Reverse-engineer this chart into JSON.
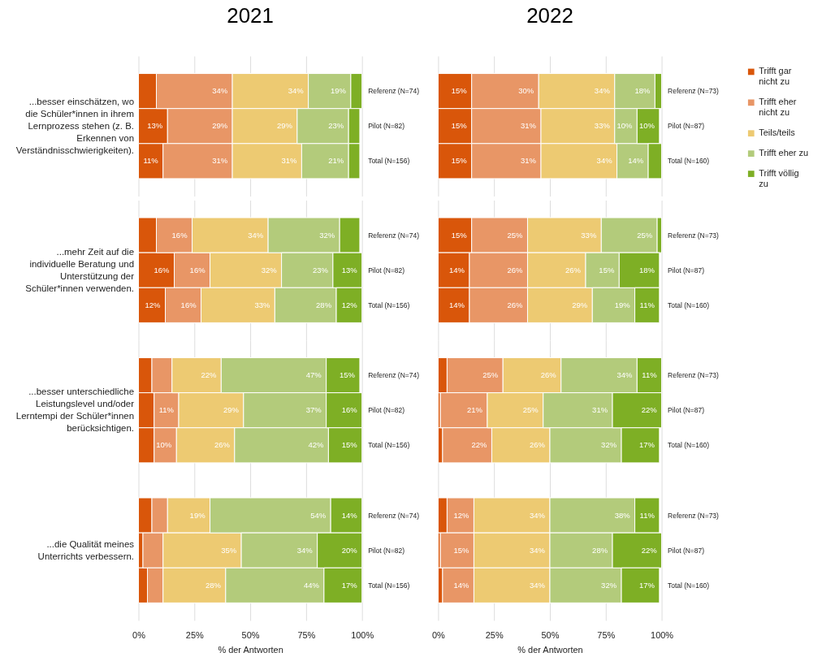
{
  "chart_data": [
    {
      "type": "bar",
      "orientation": "horizontal",
      "stacked": true,
      "title": "2021",
      "ylabel": "...besser einschätzen, wo die Schüler*innen in ihrem Lernprozess stehen (z. B. Erkennen von Verständnisschwierigkeiten).",
      "categories": [
        "Referenz (N=74)",
        "Pilot (N=82)",
        "Total (N=156)"
      ],
      "series": [
        {
          "color": "#d9560a",
          "values": [
            8,
            13,
            11
          ],
          "value_labels": [
            null,
            "13%",
            "11%"
          ]
        },
        {
          "color": "#e89666",
          "values": [
            34,
            29,
            31
          ],
          "value_labels": [
            "34%",
            "29%",
            "31%"
          ]
        },
        {
          "color": "#edca72",
          "values": [
            34,
            29,
            31
          ],
          "value_labels": [
            "34%",
            "29%",
            "31%"
          ]
        },
        {
          "color": "#b3cb7b",
          "values": [
            19,
            23,
            21
          ],
          "value_labels": [
            "19%",
            "23%",
            "21%"
          ]
        },
        {
          "color": "#7eaf25",
          "values": [
            5,
            5,
            5
          ],
          "value_labels": [
            null,
            null,
            null
          ]
        }
      ],
      "xlim": [
        0,
        100
      ],
      "xticks": [
        {
          "value": 0,
          "label": null
        },
        {
          "value": 25,
          "label": null
        },
        {
          "value": 50,
          "label": null
        },
        {
          "value": 75,
          "label": null
        },
        {
          "value": 100,
          "label": null
        }
      ],
      "grid": "x",
      "tick_labels": "y"
    },
    {
      "type": "bar",
      "orientation": "horizontal",
      "stacked": true,
      "title": "2022",
      "categories": [
        "Referenz (N=73)",
        "Pilot (N=87)",
        "Total (N=160)"
      ],
      "series": [
        {
          "name": "Trifft gar nicht zu",
          "color": "#d9560a",
          "values": [
            15,
            15,
            15
          ],
          "value_labels": [
            "15%",
            "15%",
            "15%"
          ]
        },
        {
          "name": "Trifft eher nicht zu",
          "color": "#e89666",
          "values": [
            30,
            31,
            31
          ],
          "value_labels": [
            "30%",
            "31%",
            "31%"
          ]
        },
        {
          "name": "Teils/teils",
          "color": "#edca72",
          "values": [
            34,
            33,
            34
          ],
          "value_labels": [
            "34%",
            "33%",
            "34%"
          ]
        },
        {
          "name": "Trifft eher zu",
          "color": "#b3cb7b",
          "values": [
            18,
            10,
            14
          ],
          "value_labels": [
            "18%",
            "10%",
            "14%"
          ]
        },
        {
          "name": "Trifft völlig zu",
          "color": "#7eaf25",
          "values": [
            3,
            10,
            6
          ],
          "value_labels": [
            null,
            "10%",
            null
          ]
        }
      ],
      "xlim": [
        0,
        100
      ],
      "xticks": [
        {
          "value": 0,
          "label": null
        },
        {
          "value": 25,
          "label": null
        },
        {
          "value": 50,
          "label": null
        },
        {
          "value": 75,
          "label": null
        },
        {
          "value": 100,
          "label": null
        }
      ],
      "grid": "x",
      "tick_labels": "y",
      "legend": "right"
    },
    {
      "type": "bar",
      "orientation": "horizontal",
      "stacked": true,
      "ylabel": "...mehr Zeit auf die individuelle Beratung und Unterstützung der Schüler*innen verwenden.",
      "categories": [
        "Referenz (N=74)",
        "Pilot (N=82)",
        "Total (N=156)"
      ],
      "series": [
        {
          "color": "#d9560a",
          "values": [
            8,
            16,
            12
          ],
          "value_labels": [
            null,
            "16%",
            "12%"
          ]
        },
        {
          "color": "#e89666",
          "values": [
            16,
            16,
            16
          ],
          "value_labels": [
            "16%",
            "16%",
            "16%"
          ]
        },
        {
          "color": "#edca72",
          "values": [
            34,
            32,
            33
          ],
          "value_labels": [
            "34%",
            "32%",
            "33%"
          ]
        },
        {
          "color": "#b3cb7b",
          "values": [
            32,
            23,
            27.5
          ],
          "value_labels": [
            "32%",
            "23%",
            "28%"
          ]
        },
        {
          "color": "#7eaf25",
          "values": [
            9,
            13,
            11.5
          ],
          "value_labels": [
            null,
            "13%",
            "12%"
          ]
        }
      ],
      "xlim": [
        0,
        100
      ],
      "xticks": [
        {
          "value": 0,
          "label": null
        },
        {
          "value": 25,
          "label": null
        },
        {
          "value": 50,
          "label": null
        },
        {
          "value": 75,
          "label": null
        },
        {
          "value": 100,
          "label": null
        }
      ],
      "grid": "x",
      "tick_labels": "y"
    },
    {
      "type": "bar",
      "orientation": "horizontal",
      "stacked": true,
      "categories": [
        "Referenz (N=73)",
        "Pilot (N=87)",
        "Total (N=160)"
      ],
      "series": [
        {
          "color": "#d9560a",
          "values": [
            15,
            14,
            14
          ],
          "value_labels": [
            "15%",
            "14%",
            "14%"
          ]
        },
        {
          "color": "#e89666",
          "values": [
            25,
            26,
            26
          ],
          "value_labels": [
            "25%",
            "26%",
            "26%"
          ]
        },
        {
          "color": "#edca72",
          "values": [
            33,
            26,
            29
          ],
          "value_labels": [
            "33%",
            "26%",
            "29%"
          ]
        },
        {
          "color": "#b3cb7b",
          "values": [
            25,
            15,
            19
          ],
          "value_labels": [
            "25%",
            "15%",
            "19%"
          ]
        },
        {
          "color": "#7eaf25",
          "values": [
            2,
            18,
            11
          ],
          "value_labels": [
            null,
            "18%",
            "11%"
          ]
        }
      ],
      "xlim": [
        0,
        100
      ],
      "xticks": [
        {
          "value": 0,
          "label": null
        },
        {
          "value": 25,
          "label": null
        },
        {
          "value": 50,
          "label": null
        },
        {
          "value": 75,
          "label": null
        },
        {
          "value": 100,
          "label": null
        }
      ],
      "grid": "x",
      "tick_labels": "y"
    },
    {
      "type": "bar",
      "orientation": "horizontal",
      "stacked": true,
      "ylabel": "...besser unterschiedliche Leistungslevel und/oder Lerntempi der Schüler*innen berücksichtigen.",
      "categories": [
        "Referenz (N=74)",
        "Pilot (N=82)",
        "Total (N=156)"
      ],
      "series": [
        {
          "color": "#d9560a",
          "values": [
            6,
            7,
            7
          ],
          "value_labels": [
            null,
            null,
            null
          ]
        },
        {
          "color": "#e89666",
          "values": [
            9,
            11,
            10
          ],
          "value_labels": [
            null,
            "11%",
            "10%"
          ]
        },
        {
          "color": "#edca72",
          "values": [
            22,
            29,
            26
          ],
          "value_labels": [
            "22%",
            "29%",
            "26%"
          ]
        },
        {
          "color": "#b3cb7b",
          "values": [
            47,
            37,
            42
          ],
          "value_labels": [
            "47%",
            "37%",
            "42%"
          ]
        },
        {
          "color": "#7eaf25",
          "values": [
            15,
            16,
            15
          ],
          "value_labels": [
            "15%",
            "16%",
            "15%"
          ]
        }
      ],
      "xlim": [
        0,
        100
      ],
      "xticks": [
        {
          "value": 0,
          "label": null
        },
        {
          "value": 25,
          "label": null
        },
        {
          "value": 50,
          "label": null
        },
        {
          "value": 75,
          "label": null
        },
        {
          "value": 100,
          "label": null
        }
      ],
      "grid": "x",
      "tick_labels": "y"
    },
    {
      "type": "bar",
      "orientation": "horizontal",
      "stacked": true,
      "categories": [
        "Referenz (N=73)",
        "Pilot (N=87)",
        "Total (N=160)"
      ],
      "series": [
        {
          "color": "#d9560a",
          "values": [
            4,
            1,
            2
          ],
          "value_labels": [
            null,
            null,
            null
          ]
        },
        {
          "color": "#e89666",
          "values": [
            25,
            21,
            22
          ],
          "value_labels": [
            "25%",
            "21%",
            "22%"
          ]
        },
        {
          "color": "#edca72",
          "values": [
            26,
            25,
            26
          ],
          "value_labels": [
            "26%",
            "25%",
            "26%"
          ]
        },
        {
          "color": "#b3cb7b",
          "values": [
            34,
            31,
            32
          ],
          "value_labels": [
            "34%",
            "31%",
            "32%"
          ]
        },
        {
          "color": "#7eaf25",
          "values": [
            11,
            22,
            17
          ],
          "value_labels": [
            "11%",
            "22%",
            "17%"
          ]
        }
      ],
      "xlim": [
        0,
        100
      ],
      "xticks": [
        {
          "value": 0,
          "label": null
        },
        {
          "value": 25,
          "label": null
        },
        {
          "value": 50,
          "label": null
        },
        {
          "value": 75,
          "label": null
        },
        {
          "value": 100,
          "label": null
        }
      ],
      "grid": "x",
      "tick_labels": "y"
    },
    {
      "type": "bar",
      "orientation": "horizontal",
      "stacked": true,
      "ylabel": "...die Qualität meines Unterrichts verbessern.",
      "xlabel": "% der Antworten",
      "categories": [
        "Referenz (N=74)",
        "Pilot (N=82)",
        "Total (N=156)"
      ],
      "series": [
        {
          "color": "#d9560a",
          "values": [
            6,
            2,
            4
          ],
          "value_labels": [
            null,
            null,
            null
          ]
        },
        {
          "color": "#e89666",
          "values": [
            7,
            9,
            7
          ],
          "value_labels": [
            null,
            null,
            null
          ]
        },
        {
          "color": "#edca72",
          "values": [
            19,
            35,
            28
          ],
          "value_labels": [
            "19%",
            "35%",
            "28%"
          ]
        },
        {
          "color": "#b3cb7b",
          "values": [
            54,
            34,
            44
          ],
          "value_labels": [
            "54%",
            "34%",
            "44%"
          ]
        },
        {
          "color": "#7eaf25",
          "values": [
            14,
            20,
            17
          ],
          "value_labels": [
            "14%",
            "20%",
            "17%"
          ]
        }
      ],
      "xlim": [
        0,
        100
      ],
      "xticks": [
        {
          "value": 0,
          "label": "0%"
        },
        {
          "value": 25,
          "label": "25%"
        },
        {
          "value": 50,
          "label": "50%"
        },
        {
          "value": 75,
          "label": "75%"
        },
        {
          "value": 100,
          "label": "100%"
        }
      ],
      "grid": "x"
    },
    {
      "type": "bar",
      "orientation": "horizontal",
      "stacked": true,
      "xlabel": "% der Antworten",
      "categories": [
        "Referenz (N=73)",
        "Pilot (N=87)",
        "Total (N=160)"
      ],
      "series": [
        {
          "color": "#d9560a",
          "values": [
            4,
            1,
            2
          ],
          "value_labels": [
            null,
            null,
            null
          ]
        },
        {
          "color": "#e89666",
          "values": [
            12,
            15,
            14
          ],
          "value_labels": [
            "12%",
            "15%",
            "14%"
          ]
        },
        {
          "color": "#edca72",
          "values": [
            34,
            34,
            34
          ],
          "value_labels": [
            "34%",
            "34%",
            "34%"
          ]
        },
        {
          "color": "#b3cb7b",
          "values": [
            38,
            28,
            32
          ],
          "value_labels": [
            "38%",
            "28%",
            "32%"
          ]
        },
        {
          "color": "#7eaf25",
          "values": [
            11,
            22,
            17
          ],
          "value_labels": [
            "11%",
            "22%",
            "17%"
          ]
        }
      ],
      "xlim": [
        0,
        100
      ],
      "xticks": [
        {
          "value": 0,
          "label": "0%"
        },
        {
          "value": 25,
          "label": "25%"
        },
        {
          "value": 50,
          "label": "50%"
        },
        {
          "value": 75,
          "label": "75%"
        },
        {
          "value": 100,
          "label": "100%"
        }
      ],
      "grid": "x"
    }
  ]
}
